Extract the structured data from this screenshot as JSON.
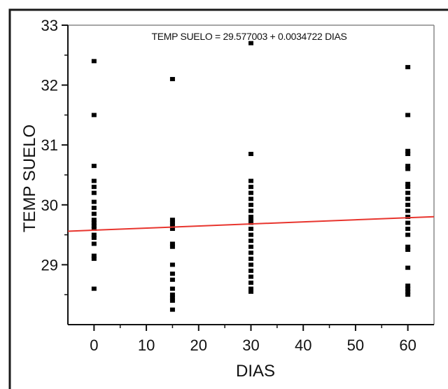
{
  "chart_data": {
    "type": "scatter",
    "title": "TEMP SUELO = 29.577003 + 0.0034722 DIAS",
    "xlabel": "DIAS",
    "ylabel": "TEMP SUELO",
    "xlim": [
      -5,
      65
    ],
    "ylim": [
      28.0,
      33.0
    ],
    "x_ticks": [
      0,
      10,
      20,
      30,
      40,
      50,
      60
    ],
    "y_ticks": [
      29,
      30,
      31,
      32,
      33
    ],
    "x_tick_labels": [
      "0",
      "10",
      "20",
      "30",
      "40",
      "50",
      "60"
    ],
    "y_tick_labels": [
      "29",
      "30",
      "31",
      "32",
      "33"
    ],
    "grid": false,
    "series": [
      {
        "points": [
          [
            0,
            32.4
          ],
          [
            0,
            31.5
          ],
          [
            0,
            30.65
          ],
          [
            0,
            30.4
          ],
          [
            0,
            30.3
          ],
          [
            0,
            30.2
          ],
          [
            0,
            30.05
          ],
          [
            0,
            29.95
          ],
          [
            0,
            29.85
          ],
          [
            0,
            29.75
          ],
          [
            0,
            29.7
          ],
          [
            0,
            29.65
          ],
          [
            0,
            29.6
          ],
          [
            0,
            29.5
          ],
          [
            0,
            29.45
          ],
          [
            0,
            29.35
          ],
          [
            0,
            29.15
          ],
          [
            0,
            29.1
          ],
          [
            0,
            28.6
          ],
          [
            15,
            32.1
          ],
          [
            15,
            29.75
          ],
          [
            15,
            29.7
          ],
          [
            15,
            29.65
          ],
          [
            15,
            29.6
          ],
          [
            15,
            29.35
          ],
          [
            15,
            29.3
          ],
          [
            15,
            29.0
          ],
          [
            15,
            28.85
          ],
          [
            15,
            28.75
          ],
          [
            15,
            28.6
          ],
          [
            15,
            28.5
          ],
          [
            15,
            28.45
          ],
          [
            15,
            28.4
          ],
          [
            15,
            28.25
          ],
          [
            30,
            32.7
          ],
          [
            30,
            30.85
          ],
          [
            30,
            30.4
          ],
          [
            30,
            30.3
          ],
          [
            30,
            30.2
          ],
          [
            30,
            30.1
          ],
          [
            30,
            30.0
          ],
          [
            30,
            29.9
          ],
          [
            30,
            29.8
          ],
          [
            30,
            29.75
          ],
          [
            30,
            29.7
          ],
          [
            30,
            29.6
          ],
          [
            30,
            29.5
          ],
          [
            30,
            29.4
          ],
          [
            30,
            29.3
          ],
          [
            30,
            29.2
          ],
          [
            30,
            29.1
          ],
          [
            30,
            29.0
          ],
          [
            30,
            28.9
          ],
          [
            30,
            28.8
          ],
          [
            30,
            28.7
          ],
          [
            30,
            28.6
          ],
          [
            30,
            28.55
          ],
          [
            60,
            32.3
          ],
          [
            60,
            31.5
          ],
          [
            60,
            30.9
          ],
          [
            60,
            30.85
          ],
          [
            60,
            30.65
          ],
          [
            60,
            30.6
          ],
          [
            60,
            30.35
          ],
          [
            60,
            30.3
          ],
          [
            60,
            30.2
          ],
          [
            60,
            30.1
          ],
          [
            60,
            30.0
          ],
          [
            60,
            29.9
          ],
          [
            60,
            29.8
          ],
          [
            60,
            29.7
          ],
          [
            60,
            29.6
          ],
          [
            60,
            29.5
          ],
          [
            60,
            29.3
          ],
          [
            60,
            29.25
          ],
          [
            60,
            28.95
          ],
          [
            60,
            28.65
          ],
          [
            60,
            28.6
          ],
          [
            60,
            28.55
          ],
          [
            60,
            28.5
          ]
        ]
      }
    ],
    "fit_line": {
      "intercept": 29.577003,
      "slope": 0.0034722
    },
    "colors": {
      "points": "#000000",
      "fit_line": "#e8352e",
      "frame": "#1a1a1a"
    }
  }
}
